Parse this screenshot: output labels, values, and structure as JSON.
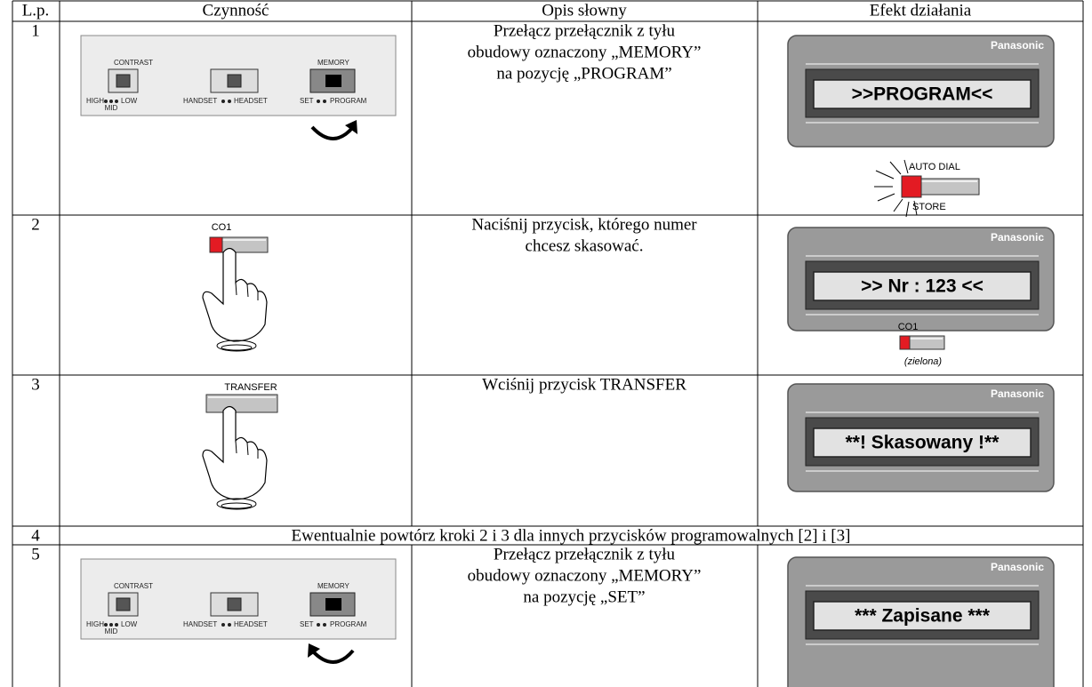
{
  "table": {
    "header": [
      "L.p.",
      "Czynność",
      "Opis słowny",
      "Efekt działania"
    ],
    "rows": [
      {
        "number": "1",
        "description": [
          "Przełącz przełącznik z tyłu",
          "obudowy oznaczony „MEMORY”",
          "na pozycję „PROGRAM”"
        ],
        "display": ">>PROGRAM<<"
      },
      {
        "number": "2",
        "description": [
          "Naciśnij przycisk, którego numer",
          "chcesz skasować."
        ],
        "display": ">> Nr : 123 <<"
      },
      {
        "number": "3",
        "description": [
          "Wciśnij przycisk TRANSFER"
        ],
        "display": "**! Skasowany !**"
      },
      {
        "number": "4",
        "description": [
          "Ewentualnie powtórz kroki 2 i 3 dla innych przycisków programowalnych [2] i [3]"
        ]
      },
      {
        "number": "5",
        "description": [
          "Przełącz przełącznik z tyłu",
          "obudowy oznaczony „MEMORY”",
          "na pozycję „SET”"
        ],
        "display": "*** Zapisane ***"
      }
    ]
  },
  "panel": {
    "contrast": "CONTRAST",
    "high": "HIGH",
    "low": "LOW",
    "mid": "MID",
    "handset": "HANDSET",
    "headset": "HEADSET",
    "memory": "MEMORY",
    "set": "SET",
    "program": "PROGRAM"
  },
  "brand": "Panasonic",
  "buttons": {
    "auto_dial": "AUTO DIAL",
    "store": "STORE",
    "co1": "CO1",
    "co1_note": "(zielona)",
    "transfer": "TRANSFER"
  }
}
